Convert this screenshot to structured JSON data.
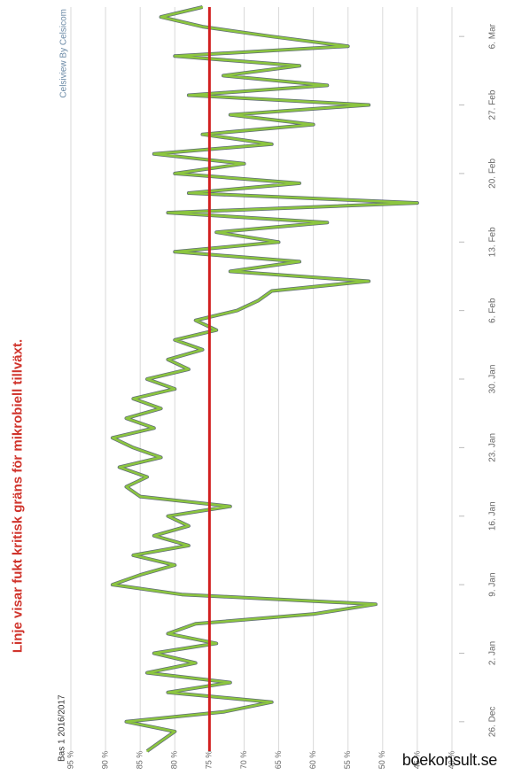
{
  "caption": "Linje visar fukt kritisk gräns för mikrobiell tillväxt.",
  "brand": "boekonsult.se",
  "chart_data": {
    "type": "line",
    "orientation": "rotated-90",
    "title": "Bas 1 2016/2017",
    "credit": "Celsiview By Celsicom",
    "ylabel": "",
    "xlabel": "",
    "ylim": [
      40,
      95
    ],
    "yticks": [
      95,
      90,
      85,
      80,
      75,
      70,
      65,
      60,
      55,
      50,
      45,
      40
    ],
    "ytick_suffix": " %",
    "xticks": [
      "26. Dec",
      "2. Jan",
      "9. Jan",
      "16. Jan",
      "23. Jan",
      "30. Jan",
      "6. Feb",
      "13. Feb",
      "20. Feb",
      "27. Feb",
      "6. Mar"
    ],
    "xlim": [
      "2016-12-23",
      "2017-03-09"
    ],
    "threshold": {
      "value": 75,
      "color": "#d21f1f"
    },
    "series": [
      {
        "color": "#8cc63f",
        "shadow_color": "#1b2e3c",
        "points": [
          [
            "2016-12-23",
            84
          ],
          [
            "2016-12-24",
            82
          ],
          [
            "2016-12-25",
            80
          ],
          [
            "2016-12-26",
            87
          ],
          [
            "2016-12-27",
            73
          ],
          [
            "2016-12-28",
            66
          ],
          [
            "2016-12-29",
            81
          ],
          [
            "2016-12-30",
            72
          ],
          [
            "2016-12-31",
            84
          ],
          [
            "2017-01-01",
            77
          ],
          [
            "2017-01-02",
            83
          ],
          [
            "2017-01-03",
            74
          ],
          [
            "2017-01-04",
            81
          ],
          [
            "2017-01-05",
            77
          ],
          [
            "2017-01-06",
            60
          ],
          [
            "2017-01-07",
            51
          ],
          [
            "2017-01-08",
            79
          ],
          [
            "2017-01-09",
            89
          ],
          [
            "2017-01-10",
            85
          ],
          [
            "2017-01-11",
            80
          ],
          [
            "2017-01-12",
            86
          ],
          [
            "2017-01-13",
            78
          ],
          [
            "2017-01-14",
            83
          ],
          [
            "2017-01-15",
            78
          ],
          [
            "2017-01-16",
            81
          ],
          [
            "2017-01-17",
            72
          ],
          [
            "2017-01-18",
            85
          ],
          [
            "2017-01-19",
            87
          ],
          [
            "2017-01-20",
            84
          ],
          [
            "2017-01-21",
            88
          ],
          [
            "2017-01-22",
            82
          ],
          [
            "2017-01-23",
            86
          ],
          [
            "2017-01-24",
            89
          ],
          [
            "2017-01-25",
            83
          ],
          [
            "2017-01-26",
            87
          ],
          [
            "2017-01-27",
            82
          ],
          [
            "2017-01-28",
            86
          ],
          [
            "2017-01-29",
            80
          ],
          [
            "2017-01-30",
            84
          ],
          [
            "2017-01-31",
            78
          ],
          [
            "2017-02-01",
            81
          ],
          [
            "2017-02-02",
            76
          ],
          [
            "2017-02-03",
            80
          ],
          [
            "2017-02-04",
            74
          ],
          [
            "2017-02-05",
            77
          ],
          [
            "2017-02-06",
            71
          ],
          [
            "2017-02-07",
            68
          ],
          [
            "2017-02-08",
            66
          ],
          [
            "2017-02-09",
            52
          ],
          [
            "2017-02-10",
            72
          ],
          [
            "2017-02-11",
            62
          ],
          [
            "2017-02-12",
            80
          ],
          [
            "2017-02-13",
            65
          ],
          [
            "2017-02-14",
            74
          ],
          [
            "2017-02-15",
            58
          ],
          [
            "2017-02-16",
            81
          ],
          [
            "2017-02-17",
            45
          ],
          [
            "2017-02-18",
            78
          ],
          [
            "2017-02-19",
            62
          ],
          [
            "2017-02-20",
            80
          ],
          [
            "2017-02-21",
            70
          ],
          [
            "2017-02-22",
            83
          ],
          [
            "2017-02-23",
            66
          ],
          [
            "2017-02-24",
            76
          ],
          [
            "2017-02-25",
            60
          ],
          [
            "2017-02-26",
            72
          ],
          [
            "2017-02-27",
            52
          ],
          [
            "2017-02-28",
            78
          ],
          [
            "2017-03-01",
            58
          ],
          [
            "2017-03-02",
            73
          ],
          [
            "2017-03-03",
            62
          ],
          [
            "2017-03-04",
            80
          ],
          [
            "2017-03-05",
            55
          ],
          [
            "2017-03-06",
            66
          ],
          [
            "2017-03-07",
            76
          ],
          [
            "2017-03-08",
            82
          ],
          [
            "2017-03-09",
            76
          ]
        ]
      }
    ]
  }
}
